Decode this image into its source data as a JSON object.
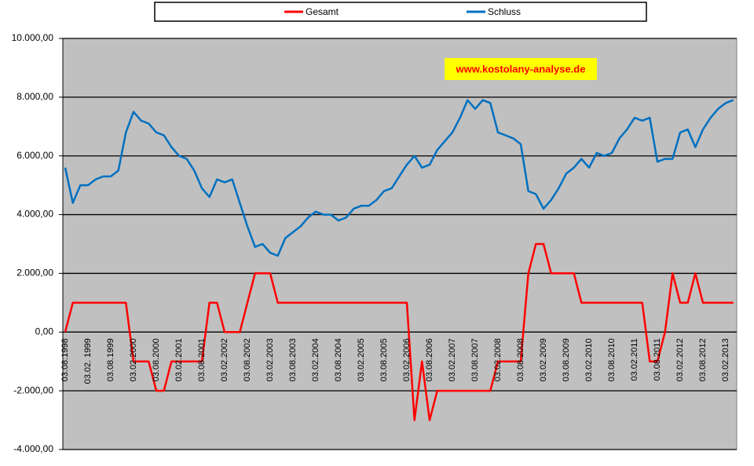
{
  "chart_data": {
    "type": "line",
    "categories": [
      "03.08.1998",
      null,
      null,
      "03.02. 1999",
      null,
      null,
      "03.08.1999",
      null,
      null,
      "03.02.2000",
      null,
      null,
      "03.08.2000",
      null,
      null,
      "03.02.2001",
      null,
      null,
      "03.08.2001",
      null,
      null,
      "03.02.2002",
      null,
      null,
      "03.08.2002",
      null,
      null,
      "03.02.2003",
      null,
      null,
      "03.08.2003",
      null,
      null,
      "03.02.2004",
      null,
      null,
      "03.08.2004",
      null,
      null,
      "03.02.2005",
      null,
      null,
      "03.08.2005",
      null,
      null,
      "03.02.2006",
      null,
      null,
      "03.08.2006",
      null,
      null,
      "03.02.2007",
      null,
      null,
      "03.08.2007",
      null,
      null,
      "03.02.2008",
      null,
      null,
      "03.08.2008",
      null,
      null,
      "03.02.2009",
      null,
      null,
      "03.08.2009",
      null,
      null,
      "03.02.2010",
      null,
      null,
      "03.08.2010",
      null,
      null,
      "03.02.2011",
      null,
      null,
      "03.08.2011",
      null,
      null,
      "03.02.2012",
      null,
      null,
      "03.08.2012",
      null,
      null,
      "03.02.2013",
      null
    ],
    "series": [
      {
        "name": "Gesamt",
        "color": "#ff0000",
        "values": [
          0,
          1000,
          1000,
          1000,
          1000,
          1000,
          1000,
          1000,
          1000,
          -1000,
          -1000,
          -1000,
          -2000,
          -2000,
          -1000,
          -1000,
          -1000,
          -1000,
          -1000,
          1000,
          1000,
          0,
          0,
          0,
          1000,
          2000,
          2000,
          2000,
          1000,
          1000,
          1000,
          1000,
          1000,
          1000,
          1000,
          1000,
          1000,
          1000,
          1000,
          1000,
          1000,
          1000,
          1000,
          1000,
          1000,
          1000,
          -3000,
          -1000,
          -3000,
          -2000,
          -2000,
          -2000,
          -2000,
          -2000,
          -2000,
          -2000,
          -2000,
          -1000,
          -1000,
          -1000,
          -1000,
          2000,
          3000,
          3000,
          2000,
          2000,
          2000,
          2000,
          1000,
          1000,
          1000,
          1000,
          1000,
          1000,
          1000,
          1000,
          1000,
          -1000,
          -1000,
          0,
          2000,
          1000,
          1000,
          2000,
          1000,
          1000,
          1000,
          1000,
          1000
        ]
      },
      {
        "name": "Schluss",
        "color": "#0070c0",
        "values": [
          5600,
          4400,
          5000,
          5000,
          5200,
          5300,
          5300,
          5500,
          6800,
          7500,
          7200,
          7100,
          6800,
          6700,
          6300,
          6000,
          5900,
          5500,
          4900,
          4600,
          5200,
          5100,
          5200,
          4400,
          3600,
          2900,
          3000,
          2700,
          2600,
          3200,
          3400,
          3600,
          3900,
          4100,
          4000,
          4000,
          3800,
          3900,
          4200,
          4300,
          4300,
          4500,
          4800,
          4900,
          5300,
          5700,
          6000,
          5600,
          5700,
          6200,
          6500,
          6800,
          7300,
          7900,
          7600,
          7900,
          7800,
          6800,
          6700,
          6600,
          6400,
          4800,
          4700,
          4200,
          4500,
          4900,
          5400,
          5600,
          5900,
          5600,
          6100,
          6000,
          6100,
          6600,
          6900,
          7300,
          7200,
          7300,
          5800,
          5900,
          5900,
          6800,
          6900,
          6300,
          6900,
          7300,
          7600,
          7800,
          7900
        ]
      }
    ],
    "ylim": [
      -4000,
      10000
    ],
    "yticks": [
      {
        "value": -4000,
        "label": "-4.000,00"
      },
      {
        "value": -2000,
        "label": "-2.000,00"
      },
      {
        "value": 0,
        "label": "0,00"
      },
      {
        "value": 2000,
        "label": "2.000,00"
      },
      {
        "value": 4000,
        "label": "4.000,00"
      },
      {
        "value": 6000,
        "label": "6.000,00"
      },
      {
        "value": 8000,
        "label": "8.000,00"
      },
      {
        "value": 10000,
        "label": "10.000,00"
      }
    ],
    "grid": true,
    "annotation": "www.kostolany-analyse.de"
  }
}
